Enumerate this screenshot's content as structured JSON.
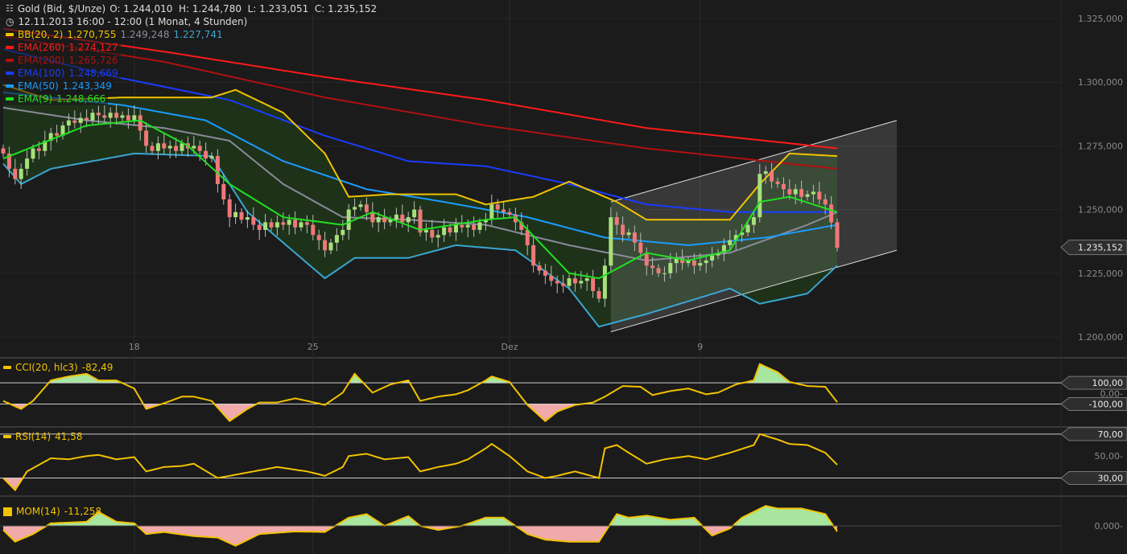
{
  "header": {
    "instrument": "Gold (Bid, $/Unze)",
    "ohlc": "O: 1.244,010  H: 1.244,780  L: 1.233,051  C: 1.235,152",
    "period": "12.11.2013 16:00 - 12:00 (1 Monat, 4 Stunden)",
    "icons": [
      "chart-settings-icon",
      "clock-icon"
    ]
  },
  "legend": [
    {
      "label": "BB(20, 2)",
      "value": "1.270,755",
      "value2": "1.249,248",
      "value3": "1.227,741",
      "color": "#f2c200"
    },
    {
      "label": "EMA(260)",
      "value": "1.274,127",
      "color": "#ff1a1a"
    },
    {
      "label": "EMA(200)",
      "value": "1.265,726",
      "color": "#b01010"
    },
    {
      "label": "EMA(100)",
      "value": "1.248,669",
      "color": "#1a3cff"
    },
    {
      "label": "EMA(50)",
      "value": "1.243,349",
      "color": "#1a9cff"
    },
    {
      "label": "EMA(9)",
      "value": "1.248,666",
      "color": "#22e022"
    }
  ],
  "colors": {
    "background": "#1b1b1b",
    "up": "#a8e07a",
    "down": "#f07878",
    "bb_upper": "#f2c200",
    "bb_mid": "#8a8a9a",
    "bb_lower": "#3aa6d0",
    "bb_fill": "#1e321a",
    "oscillator": "#f2c200",
    "pos_fill": "#a8e6a0",
    "neg_fill": "#f0aaaa"
  },
  "chart_data": [
    {
      "type": "candlestick",
      "title": "Gold (Bid, $/Unze)",
      "x_unit": "4-hour bar index",
      "x_ticks": [
        {
          "index": 22,
          "label": "18"
        },
        {
          "index": 52,
          "label": "25"
        },
        {
          "index": 85,
          "label": "Dez"
        },
        {
          "index": 117,
          "label": "9"
        }
      ],
      "y_ticks": [
        "1.325,000",
        "1.300,000",
        "1.275,000",
        "1.250,000",
        "1.225,000",
        "1.200,000"
      ],
      "ylim": [
        1200,
        1325
      ],
      "last_price": "1.235,152",
      "closes": [
        1272,
        1266,
        1262,
        1266,
        1270,
        1274,
        1273,
        1277,
        1280,
        1279,
        1283,
        1285,
        1284,
        1286,
        1285,
        1288,
        1287,
        1286,
        1288,
        1286,
        1287,
        1285,
        1287,
        1281,
        1275,
        1273,
        1276,
        1274,
        1275,
        1273,
        1276,
        1274,
        1275,
        1273,
        1270,
        1271,
        1260,
        1254,
        1247,
        1249,
        1246,
        1247,
        1244,
        1242,
        1245,
        1243,
        1245,
        1244,
        1246,
        1243,
        1245,
        1244,
        1240,
        1238,
        1234,
        1237,
        1240,
        1242,
        1250,
        1251,
        1252,
        1249,
        1245,
        1247,
        1245,
        1246,
        1248,
        1245,
        1247,
        1250,
        1241,
        1242,
        1239,
        1240,
        1243,
        1241,
        1244,
        1243,
        1244,
        1242,
        1245,
        1246,
        1252,
        1250,
        1249,
        1248,
        1245,
        1242,
        1236,
        1228,
        1226,
        1224,
        1222,
        1221,
        1220,
        1223,
        1221,
        1222,
        1223,
        1218,
        1215,
        1228,
        1247,
        1244,
        1240,
        1241,
        1237,
        1233,
        1228,
        1227,
        1225,
        1225,
        1229,
        1231,
        1229,
        1230,
        1228,
        1229,
        1230,
        1232,
        1233,
        1236,
        1238,
        1240,
        1241,
        1244,
        1247,
        1264,
        1265,
        1261,
        1260,
        1258,
        1256,
        1258,
        1255,
        1256,
        1257,
        1254,
        1252,
        1245,
        1235
      ],
      "series": {
        "ema260": [
          [
            0,
            1321
          ],
          [
            27,
            1312
          ],
          [
            54,
            1302
          ],
          [
            81,
            1293
          ],
          [
            108,
            1282
          ],
          [
            140,
            1274
          ]
        ],
        "ema200": [
          [
            0,
            1318
          ],
          [
            27,
            1308
          ],
          [
            54,
            1294
          ],
          [
            81,
            1283
          ],
          [
            108,
            1274
          ],
          [
            140,
            1266
          ]
        ],
        "ema100": [
          [
            0,
            1313
          ],
          [
            19,
            1302
          ],
          [
            38,
            1293
          ],
          [
            54,
            1279
          ],
          [
            68,
            1269
          ],
          [
            81,
            1267
          ],
          [
            95,
            1260
          ],
          [
            108,
            1252
          ],
          [
            122,
            1249
          ],
          [
            140,
            1249
          ]
        ],
        "ema50": [
          [
            0,
            1296
          ],
          [
            20,
            1291
          ],
          [
            34,
            1285
          ],
          [
            47,
            1269
          ],
          [
            61,
            1258
          ],
          [
            74,
            1253
          ],
          [
            88,
            1247
          ],
          [
            101,
            1239
          ],
          [
            115,
            1236
          ],
          [
            128,
            1239
          ],
          [
            140,
            1244
          ]
        ],
        "ema9": [
          [
            0,
            1270
          ],
          [
            14,
            1283
          ],
          [
            23,
            1285
          ],
          [
            31,
            1275
          ],
          [
            38,
            1260
          ],
          [
            47,
            1247
          ],
          [
            57,
            1244
          ],
          [
            62,
            1249
          ],
          [
            70,
            1242
          ],
          [
            81,
            1246
          ],
          [
            86,
            1247
          ],
          [
            95,
            1225
          ],
          [
            100,
            1223
          ],
          [
            108,
            1233
          ],
          [
            115,
            1230
          ],
          [
            122,
            1234
          ],
          [
            127,
            1253
          ],
          [
            132,
            1255
          ],
          [
            140,
            1249
          ]
        ],
        "bb_mid": [
          [
            0,
            1290
          ],
          [
            14,
            1285
          ],
          [
            27,
            1282
          ],
          [
            38,
            1277
          ],
          [
            47,
            1260
          ],
          [
            57,
            1247
          ],
          [
            68,
            1246
          ],
          [
            81,
            1244
          ],
          [
            95,
            1236
          ],
          [
            108,
            1230
          ],
          [
            122,
            1233
          ],
          [
            135,
            1244
          ],
          [
            140,
            1249
          ]
        ],
        "bb_upper": [
          [
            0,
            1299
          ],
          [
            8,
            1293
          ],
          [
            20,
            1294
          ],
          [
            35,
            1294
          ],
          [
            39,
            1297
          ],
          [
            47,
            1288
          ],
          [
            54,
            1272
          ],
          [
            58,
            1255
          ],
          [
            65,
            1256
          ],
          [
            76,
            1256
          ],
          [
            81,
            1252
          ],
          [
            89,
            1255
          ],
          [
            95,
            1261
          ],
          [
            103,
            1253
          ],
          [
            108,
            1246
          ],
          [
            122,
            1246
          ],
          [
            127,
            1260
          ],
          [
            132,
            1272
          ],
          [
            140,
            1271
          ]
        ],
        "bb_lower": [
          [
            0,
            1268
          ],
          [
            3,
            1260
          ],
          [
            8,
            1266
          ],
          [
            22,
            1272
          ],
          [
            35,
            1271
          ],
          [
            41,
            1249
          ],
          [
            49,
            1233
          ],
          [
            54,
            1223
          ],
          [
            59,
            1231
          ],
          [
            68,
            1231
          ],
          [
            76,
            1236
          ],
          [
            86,
            1234
          ],
          [
            95,
            1219
          ],
          [
            100,
            1204
          ],
          [
            108,
            1209
          ],
          [
            122,
            1219
          ],
          [
            127,
            1213
          ],
          [
            135,
            1217
          ],
          [
            140,
            1228
          ]
        ]
      },
      "channel": {
        "upper": [
          [
            102,
            1253
          ],
          [
            150,
            1285
          ]
        ],
        "lower": [
          [
            102,
            1202
          ],
          [
            150,
            1234
          ]
        ]
      }
    },
    {
      "type": "line",
      "name": "CCI(20, hlc3)",
      "last": "-82,49",
      "levels": [
        "100,00",
        "-100,00"
      ],
      "level_values": [
        100,
        -100
      ],
      "zero_label": "0,00-",
      "ylim": [
        -300,
        320
      ],
      "values": [
        [
          0,
          -70
        ],
        [
          3,
          -146
        ],
        [
          5,
          -70
        ],
        [
          8,
          123
        ],
        [
          11,
          160
        ],
        [
          14,
          185
        ],
        [
          16,
          123
        ],
        [
          19,
          123
        ],
        [
          22,
          46
        ],
        [
          24,
          -146
        ],
        [
          27,
          -92
        ],
        [
          30,
          -30
        ],
        [
          32,
          -30
        ],
        [
          35,
          -70
        ],
        [
          38,
          -260
        ],
        [
          41,
          -146
        ],
        [
          43,
          -85
        ],
        [
          46,
          -85
        ],
        [
          49,
          -46
        ],
        [
          51,
          -70
        ],
        [
          54,
          -108
        ],
        [
          57,
          8
        ],
        [
          59,
          185
        ],
        [
          62,
          8
        ],
        [
          65,
          85
        ],
        [
          68,
          123
        ],
        [
          70,
          -70
        ],
        [
          73,
          -30
        ],
        [
          76,
          -8
        ],
        [
          78,
          30
        ],
        [
          81,
          123
        ],
        [
          82,
          160
        ],
        [
          85,
          108
        ],
        [
          88,
          -108
        ],
        [
          91,
          -260
        ],
        [
          93,
          -170
        ],
        [
          96,
          -108
        ],
        [
          99,
          -85
        ],
        [
          101,
          -30
        ],
        [
          104,
          70
        ],
        [
          107,
          62
        ],
        [
          109,
          -15
        ],
        [
          112,
          23
        ],
        [
          115,
          46
        ],
        [
          118,
          -8
        ],
        [
          120,
          8
        ],
        [
          123,
          85
        ],
        [
          126,
          123
        ],
        [
          127,
          277
        ],
        [
          130,
          200
        ],
        [
          132,
          108
        ],
        [
          135,
          70
        ],
        [
          138,
          62
        ],
        [
          140,
          -82
        ]
      ]
    },
    {
      "type": "line",
      "name": "RSI(14)",
      "last": "41,58",
      "levels": [
        "70,00",
        "30,00"
      ],
      "level_values": [
        70,
        30
      ],
      "mid_label": "50,00-",
      "ylim": [
        15,
        75
      ],
      "values": [
        [
          0,
          30
        ],
        [
          2,
          19
        ],
        [
          4,
          36
        ],
        [
          8,
          48
        ],
        [
          11,
          47
        ],
        [
          14,
          50
        ],
        [
          16,
          51
        ],
        [
          19,
          47
        ],
        [
          22,
          49
        ],
        [
          24,
          36
        ],
        [
          27,
          40
        ],
        [
          30,
          41
        ],
        [
          32,
          43
        ],
        [
          36,
          30
        ],
        [
          39,
          33
        ],
        [
          42,
          36
        ],
        [
          46,
          40
        ],
        [
          51,
          36
        ],
        [
          54,
          32
        ],
        [
          57,
          40
        ],
        [
          58,
          50
        ],
        [
          61,
          52
        ],
        [
          64,
          47
        ],
        [
          68,
          49
        ],
        [
          70,
          36
        ],
        [
          73,
          40
        ],
        [
          76,
          43
        ],
        [
          78,
          47
        ],
        [
          81,
          57
        ],
        [
          82,
          61
        ],
        [
          85,
          50
        ],
        [
          88,
          36
        ],
        [
          91,
          30
        ],
        [
          93,
          32
        ],
        [
          96,
          36
        ],
        [
          100,
          30
        ],
        [
          101,
          57
        ],
        [
          103,
          60
        ],
        [
          105,
          53
        ],
        [
          108,
          43
        ],
        [
          111,
          47
        ],
        [
          115,
          50
        ],
        [
          118,
          47
        ],
        [
          122,
          53
        ],
        [
          126,
          60
        ],
        [
          127,
          70
        ],
        [
          130,
          65
        ],
        [
          132,
          61
        ],
        [
          135,
          60
        ],
        [
          138,
          53
        ],
        [
          140,
          42
        ]
      ]
    },
    {
      "type": "area",
      "name": "MOM(14)",
      "last": "-11,258",
      "zero_label": "0,000-",
      "ylim": [
        -55,
        55
      ],
      "values": [
        [
          0,
          -8
        ],
        [
          2,
          -31
        ],
        [
          5,
          -16
        ],
        [
          8,
          5
        ],
        [
          14,
          8
        ],
        [
          16,
          27
        ],
        [
          19,
          8
        ],
        [
          22,
          5
        ],
        [
          24,
          -16
        ],
        [
          27,
          -12
        ],
        [
          32,
          -20
        ],
        [
          36,
          -23
        ],
        [
          39,
          -39
        ],
        [
          43,
          -16
        ],
        [
          49,
          -11
        ],
        [
          54,
          -12
        ],
        [
          58,
          16
        ],
        [
          61,
          23
        ],
        [
          64,
          0
        ],
        [
          68,
          19
        ],
        [
          70,
          0
        ],
        [
          73,
          -8
        ],
        [
          77,
          0
        ],
        [
          81,
          16
        ],
        [
          84,
          16
        ],
        [
          88,
          -16
        ],
        [
          91,
          -27
        ],
        [
          95,
          -31
        ],
        [
          100,
          -31
        ],
        [
          103,
          23
        ],
        [
          105,
          16
        ],
        [
          108,
          20
        ],
        [
          112,
          12
        ],
        [
          116,
          16
        ],
        [
          119,
          -19
        ],
        [
          122,
          -5
        ],
        [
          124,
          16
        ],
        [
          128,
          39
        ],
        [
          130,
          34
        ],
        [
          134,
          34
        ],
        [
          138,
          23
        ],
        [
          140,
          -11
        ]
      ]
    }
  ]
}
